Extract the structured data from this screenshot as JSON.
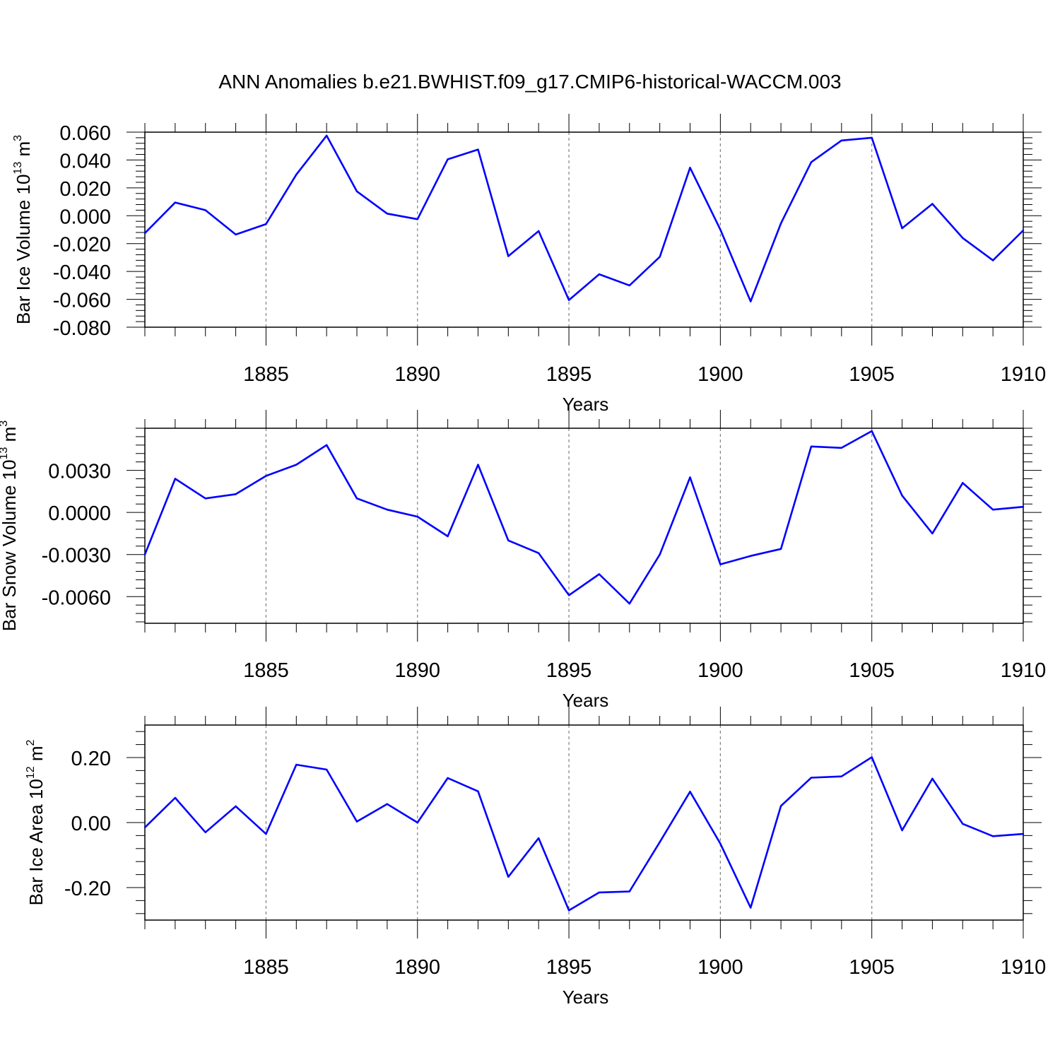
{
  "figure": {
    "title": "ANN Anomalies b.e21.BWHIST.f09_g17.CMIP6-historical-WACCM.003"
  },
  "colors": {
    "line": "#0000ff",
    "axis": "#000000",
    "gridline": "#808080"
  },
  "chart_data": [
    {
      "type": "line",
      "title": "",
      "ylabel": {
        "prefix": "Bar Ice Volume 10",
        "exponent": "13",
        "unit": " m",
        "unit_exponent": "3"
      },
      "xlabel": "Years",
      "xlim": [
        1881,
        1910
      ],
      "ylim": [
        -0.08,
        0.06
      ],
      "yticks": [
        -0.08,
        -0.06,
        -0.04,
        -0.02,
        0.0,
        0.02,
        0.04,
        0.06
      ],
      "ytick_labels": [
        "-0.080",
        "-0.060",
        "-0.040",
        "-0.020",
        "0.000",
        "0.020",
        "0.040",
        "0.060"
      ],
      "xticks": [
        1885,
        1890,
        1895,
        1900,
        1905,
        1910
      ],
      "xtick_labels": [
        "1885",
        "1890",
        "1895",
        "1900",
        "1905",
        "1910"
      ],
      "grid": "vertical dashed at major x ticks",
      "series": [
        {
          "x": [
            1881,
            1882,
            1883,
            1884,
            1885,
            1886,
            1887,
            1888,
            1889,
            1890,
            1891,
            1892,
            1893,
            1894,
            1895,
            1896,
            1897,
            1898,
            1899,
            1900,
            1901,
            1902,
            1903,
            1904,
            1905,
            1906,
            1907,
            1908,
            1909,
            1910
          ],
          "values": [
            -0.0125,
            0.0095,
            0.004,
            -0.0135,
            -0.006,
            0.0295,
            0.0575,
            0.0175,
            0.0015,
            -0.0025,
            0.0405,
            0.0475,
            -0.029,
            -0.011,
            -0.0605,
            -0.042,
            -0.05,
            -0.0295,
            0.0345,
            -0.01,
            -0.0615,
            -0.0055,
            0.0385,
            0.054,
            0.056,
            -0.009,
            0.0085,
            -0.016,
            -0.032,
            -0.0105
          ]
        }
      ]
    },
    {
      "type": "line",
      "title": "",
      "ylabel": {
        "prefix": "Bar Snow Volume 10",
        "exponent": "13",
        "unit": " m",
        "unit_exponent": "3"
      },
      "xlabel": "Years",
      "xlim": [
        1881,
        1910
      ],
      "ylim": [
        -0.0079,
        0.006
      ],
      "yticks": [
        -0.006,
        -0.003,
        0.0,
        0.003
      ],
      "ytick_labels": [
        "-0.0060",
        "-0.0030",
        "0.0000",
        "0.0030"
      ],
      "xticks": [
        1885,
        1890,
        1895,
        1900,
        1905,
        1910
      ],
      "xtick_labels": [
        "1885",
        "1890",
        "1895",
        "1900",
        "1905",
        "1910"
      ],
      "grid": "vertical dashed at major x ticks",
      "series": [
        {
          "x": [
            1881,
            1882,
            1883,
            1884,
            1885,
            1886,
            1887,
            1888,
            1889,
            1890,
            1891,
            1892,
            1893,
            1894,
            1895,
            1896,
            1897,
            1898,
            1899,
            1900,
            1901,
            1902,
            1903,
            1904,
            1905,
            1906,
            1907,
            1908,
            1909,
            1910
          ],
          "values": [
            -0.003,
            0.0024,
            0.001,
            0.0013,
            0.0026,
            0.0034,
            0.0048,
            0.001,
            0.0002,
            -0.0003,
            -0.0017,
            0.0034,
            -0.002,
            -0.0029,
            -0.0059,
            -0.0044,
            -0.0065,
            -0.003,
            0.0025,
            -0.0037,
            -0.0031,
            -0.0026,
            0.0047,
            0.0046,
            0.0058,
            0.0012,
            -0.0015,
            0.0021,
            0.0002,
            0.0004
          ]
        }
      ]
    },
    {
      "type": "line",
      "title": "",
      "ylabel": {
        "prefix": "Bar Ice Area 10",
        "exponent": "12",
        "unit": " m",
        "unit_exponent": "2"
      },
      "xlabel": "Years",
      "xlim": [
        1881,
        1910
      ],
      "ylim": [
        -0.3,
        0.3
      ],
      "yticks": [
        -0.2,
        0.0,
        0.2
      ],
      "ytick_labels": [
        "-0.20",
        "0.00",
        "0.20"
      ],
      "xticks": [
        1885,
        1890,
        1895,
        1900,
        1905,
        1910
      ],
      "xtick_labels": [
        "1885",
        "1890",
        "1895",
        "1900",
        "1905",
        "1910"
      ],
      "grid": "vertical dashed at major x ticks",
      "series": [
        {
          "x": [
            1881,
            1882,
            1883,
            1884,
            1885,
            1886,
            1887,
            1888,
            1889,
            1890,
            1891,
            1892,
            1893,
            1894,
            1895,
            1896,
            1897,
            1898,
            1899,
            1900,
            1901,
            1902,
            1903,
            1904,
            1905,
            1906,
            1907,
            1908,
            1909,
            1910
          ],
          "values": [
            -0.015,
            0.076,
            -0.03,
            0.05,
            -0.035,
            0.178,
            0.163,
            0.003,
            0.057,
            0.0,
            0.137,
            0.096,
            -0.167,
            -0.048,
            -0.27,
            -0.215,
            -0.212,
            -0.06,
            0.095,
            -0.065,
            -0.262,
            0.051,
            0.138,
            0.142,
            0.201,
            -0.024,
            0.135,
            -0.004,
            -0.042,
            -0.035
          ]
        }
      ]
    }
  ]
}
